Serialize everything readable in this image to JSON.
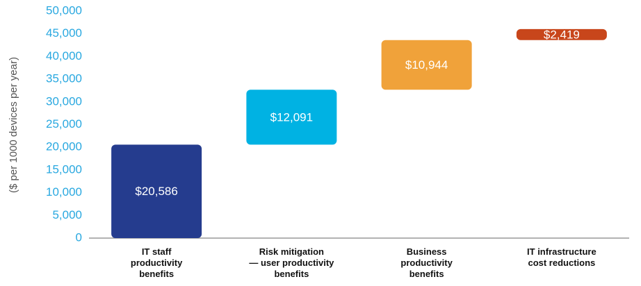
{
  "chart_data": {
    "type": "waterfall",
    "y_label": "($ per 1000 devices per year)",
    "categories": [
      "IT staff\nproductivity\nbenefits",
      "Risk mitigation\n— user productivity\nbenefits",
      "Business\nproductivity\nbenefits",
      "IT infrastructure\ncost reductions"
    ],
    "values": [
      20586,
      12091,
      10944,
      2419
    ],
    "value_labels": [
      "$20,586",
      "$12,091",
      "$10,944",
      "$2,419"
    ],
    "colors": [
      "#253c8e",
      "#00b2e3",
      "#f0a23a",
      "#c8461b"
    ],
    "ylim": [
      0,
      50000
    ],
    "yticks": [
      0,
      {
        "value": 5000,
        "label": "5,000"
      },
      {
        "value": 10000,
        "label": "10,000"
      },
      {
        "value": 15000,
        "label": "15,000"
      },
      {
        "value": 20000,
        "label": "20,000"
      },
      {
        "value": 25000,
        "label": "25,000"
      },
      {
        "value": 30000,
        "label": "30,000"
      },
      {
        "value": 35000,
        "label": "35,000"
      },
      {
        "value": 40000,
        "label": "40,000"
      },
      {
        "value": 45000,
        "label": "45,000"
      },
      {
        "value": 50000,
        "label": "50,000"
      }
    ],
    "grid": false
  }
}
